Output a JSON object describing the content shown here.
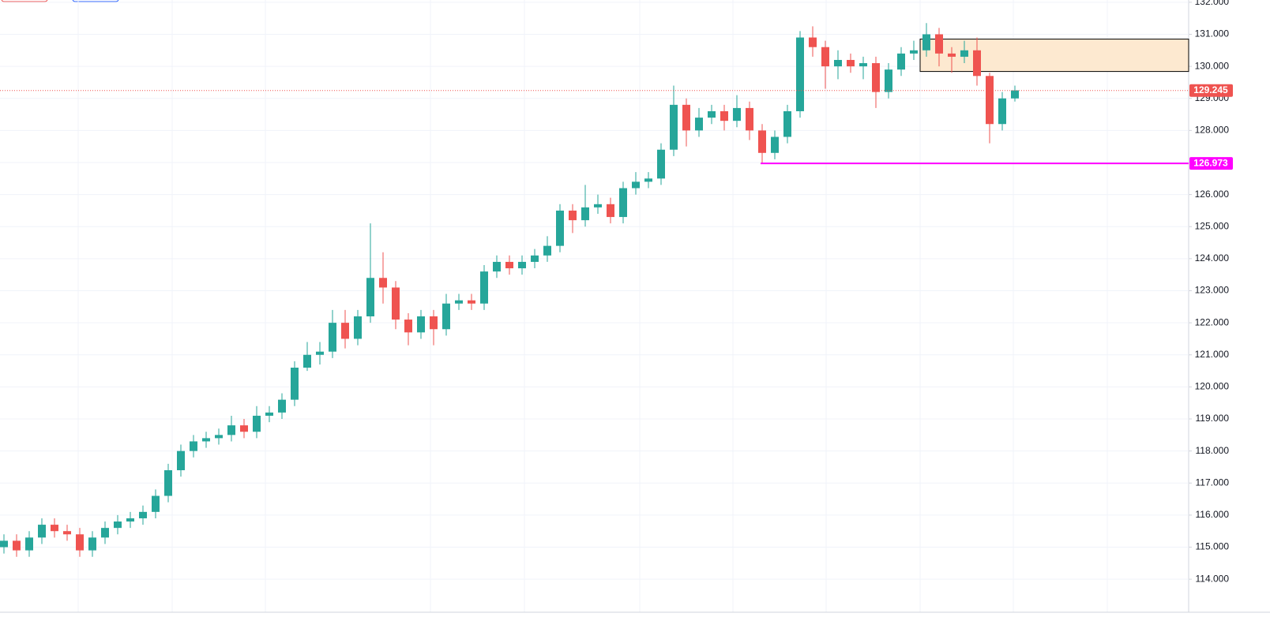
{
  "chart_data": {
    "type": "candlestick",
    "open": [
      115.0,
      115.2,
      114.9,
      115.3,
      115.7,
      115.5,
      115.4,
      114.9,
      115.3,
      115.6,
      115.8,
      115.9,
      116.1,
      116.6,
      117.4,
      118.0,
      118.3,
      118.4,
      118.5,
      118.8,
      118.6,
      119.1,
      119.2,
      119.6,
      120.6,
      121.0,
      121.1,
      122.0,
      121.5,
      122.2,
      123.4,
      123.1,
      122.1,
      121.7,
      122.2,
      121.8,
      122.6,
      122.7,
      122.6,
      123.6,
      123.9,
      123.7,
      123.9,
      124.1,
      124.4,
      125.5,
      125.2,
      125.6,
      125.7,
      125.3,
      126.2,
      126.4,
      126.5,
      127.4,
      128.8,
      128.0,
      128.4,
      128.6,
      128.3,
      128.7,
      128.0,
      127.3,
      127.8,
      128.6,
      130.9,
      130.6,
      130.0,
      130.2,
      130.0,
      130.1,
      129.2,
      129.9,
      130.4,
      130.5,
      131.0,
      130.4,
      130.3,
      130.5,
      129.7,
      128.2,
      129.0
    ],
    "high": [
      115.4,
      115.4,
      115.5,
      115.9,
      115.9,
      115.7,
      115.6,
      115.5,
      115.8,
      116.0,
      116.1,
      116.3,
      116.8,
      117.6,
      118.2,
      118.5,
      118.6,
      118.7,
      119.1,
      119.0,
      119.4,
      119.4,
      119.8,
      120.8,
      121.4,
      121.4,
      122.4,
      122.4,
      122.4,
      125.1,
      124.2,
      123.3,
      122.3,
      122.4,
      122.4,
      122.9,
      122.9,
      122.9,
      123.8,
      124.1,
      124.1,
      124.1,
      124.3,
      124.7,
      125.7,
      125.7,
      126.3,
      126.0,
      125.9,
      126.4,
      126.7,
      126.7,
      127.6,
      129.4,
      129.0,
      128.7,
      128.8,
      128.8,
      129.1,
      128.9,
      128.2,
      128.0,
      128.8,
      131.1,
      131.25,
      130.8,
      130.5,
      130.4,
      130.3,
      130.3,
      130.1,
      130.6,
      130.8,
      131.35,
      131.2,
      130.6,
      130.8,
      130.9,
      129.8,
      129.2,
      129.4
    ],
    "low": [
      114.8,
      114.7,
      114.7,
      115.1,
      115.3,
      115.2,
      114.7,
      114.7,
      115.1,
      115.4,
      115.6,
      115.7,
      115.9,
      116.4,
      117.2,
      117.8,
      118.1,
      118.2,
      118.3,
      118.4,
      118.4,
      118.9,
      119.0,
      119.4,
      120.5,
      120.7,
      120.9,
      121.2,
      121.3,
      122.0,
      122.6,
      121.8,
      121.3,
      121.5,
      121.3,
      121.6,
      122.4,
      122.4,
      122.4,
      123.4,
      123.5,
      123.5,
      123.7,
      123.9,
      124.2,
      124.8,
      125.0,
      125.4,
      125.1,
      125.1,
      126.0,
      126.2,
      126.3,
      127.2,
      127.5,
      127.8,
      128.2,
      128.0,
      128.1,
      127.7,
      126.97,
      127.1,
      127.6,
      128.4,
      130.3,
      129.3,
      129.6,
      129.8,
      129.6,
      128.7,
      129.0,
      129.7,
      130.2,
      130.3,
      130.0,
      129.8,
      130.1,
      129.4,
      127.6,
      128.0,
      128.9
    ],
    "close": [
      115.2,
      114.9,
      115.3,
      115.7,
      115.5,
      115.4,
      114.9,
      115.3,
      115.6,
      115.8,
      115.9,
      116.1,
      116.6,
      117.4,
      118.0,
      118.3,
      118.4,
      118.5,
      118.8,
      118.6,
      119.1,
      119.2,
      119.6,
      120.6,
      121.0,
      121.1,
      122.0,
      121.5,
      122.2,
      123.4,
      123.1,
      122.1,
      121.7,
      122.2,
      121.8,
      122.6,
      122.7,
      122.6,
      123.6,
      123.9,
      123.7,
      123.9,
      124.1,
      124.4,
      125.5,
      125.2,
      125.6,
      125.7,
      125.3,
      126.2,
      126.4,
      126.5,
      127.4,
      128.8,
      128.0,
      128.4,
      128.6,
      128.3,
      128.7,
      128.0,
      127.3,
      127.8,
      128.6,
      130.9,
      130.6,
      130.0,
      130.2,
      130.0,
      130.1,
      129.2,
      129.9,
      130.4,
      130.5,
      131.0,
      130.4,
      130.3,
      130.5,
      129.7,
      128.2,
      129.0,
      129.25
    ],
    "up_color": "#26a69a",
    "down_color": "#ef5350",
    "ylim": [
      112.97,
      132.07
    ],
    "yticks": [
      {
        "value": 114,
        "label": "114.000"
      },
      {
        "value": 115,
        "label": "115.000"
      },
      {
        "value": 116,
        "label": "116.000"
      },
      {
        "value": 117,
        "label": "117.000"
      },
      {
        "value": 118,
        "label": "118.000"
      },
      {
        "value": 119,
        "label": "119.000"
      },
      {
        "value": 120,
        "label": "120.000"
      },
      {
        "value": 121,
        "label": "121.000"
      },
      {
        "value": 122,
        "label": "122.000"
      },
      {
        "value": 123,
        "label": "123.000"
      },
      {
        "value": 124,
        "label": "124.000"
      },
      {
        "value": 125,
        "label": "125.000"
      },
      {
        "value": 126,
        "label": "126.000"
      },
      {
        "value": 127,
        "label": "127.000"
      },
      {
        "value": 128,
        "label": "128.000"
      },
      {
        "value": 129,
        "label": "129.000"
      },
      {
        "value": 130,
        "label": "130.000"
      },
      {
        "value": 131,
        "label": "131.000"
      },
      {
        "value": 132,
        "label": "132.000"
      }
    ],
    "grid": true,
    "last_price": 129.245,
    "last_price_color": "#ef5350",
    "support_level": 126.973,
    "support_color": "#ff00ff",
    "zone": {
      "top": 130.85,
      "bottom": 129.84,
      "fill": "#fde9d0",
      "stroke": "#000000"
    }
  }
}
